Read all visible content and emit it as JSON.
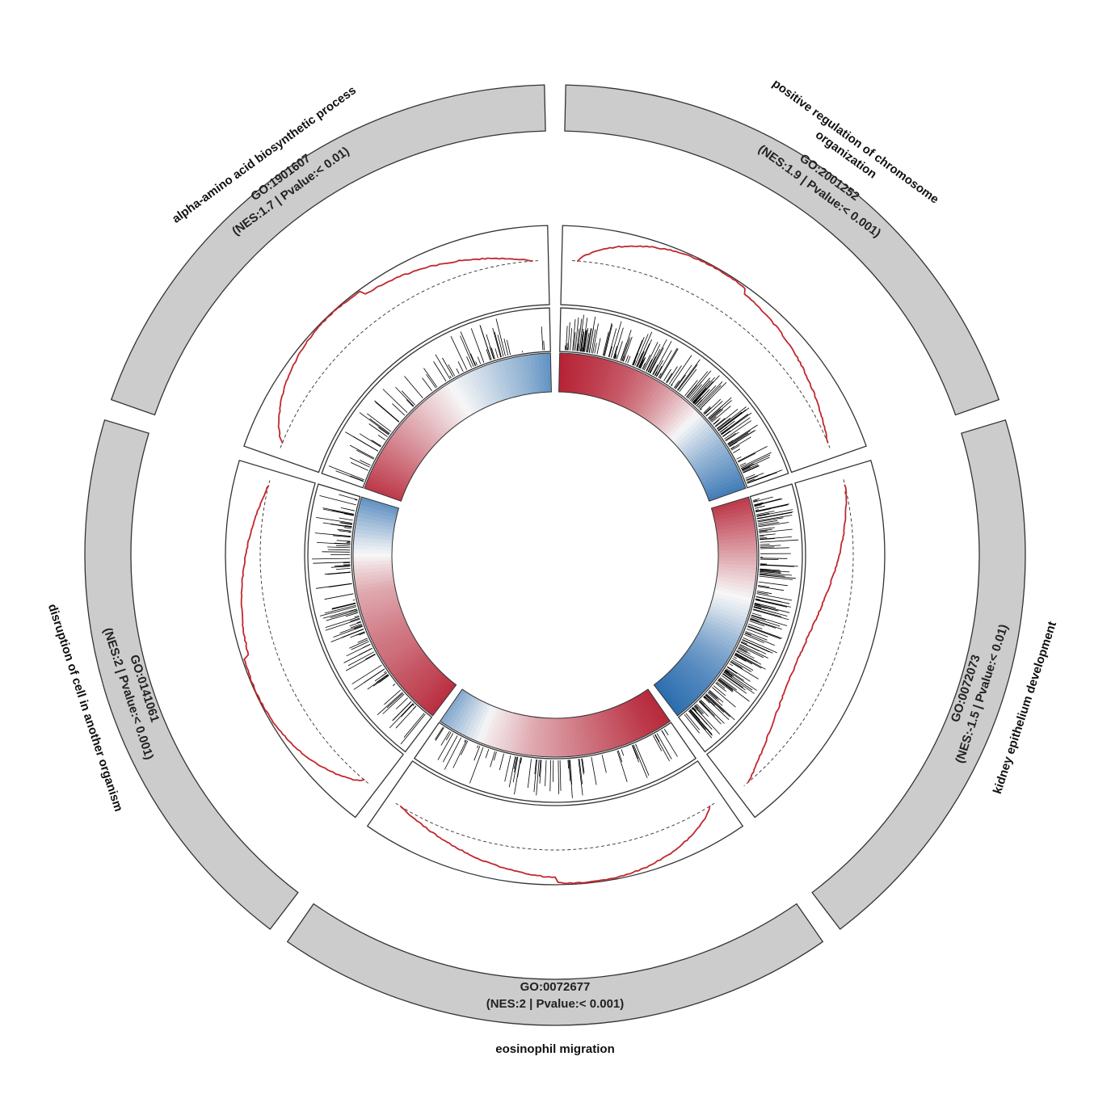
{
  "chart_data": {
    "type": "circular-gsea",
    "colors": {
      "outer_band": "#cccccc",
      "enrichment_line": "#c0282d",
      "positive": "#b2182b",
      "negative": "#2166ac",
      "neutral": "#f7f7f7",
      "hit_ticks": "#000000"
    },
    "terms": [
      {
        "go_id": "GO:2001252",
        "term": "positive regulation of chromosome organization",
        "term_lines": [
          "positive regulation of chromosome",
          "organization"
        ],
        "nes": 1.9,
        "nes_text": "(NES:1.9 | Pvalue:< 0.001)",
        "rank_profile": [
          0.95,
          0.88,
          0.8,
          0.7,
          0.55,
          0.35,
          0.1,
          -0.2,
          -0.45,
          -0.65,
          -0.85
        ],
        "hit_density": "high"
      },
      {
        "go_id": "GO:0072073",
        "term": "kidney epithelium development",
        "term_lines": [
          "kidney epithelium development"
        ],
        "nes": -1.5,
        "nes_text": "(NES:-1.5 | Pvalue:< 0.01)",
        "rank_profile": [
          0.85,
          0.65,
          0.45,
          0.25,
          0.05,
          -0.15,
          -0.4,
          -0.6,
          -0.75,
          -0.85,
          -0.95
        ],
        "hit_density": "high"
      },
      {
        "go_id": "GO:0072677",
        "term": "eosinophil migration",
        "term_lines": [
          "eosinophil migration"
        ],
        "nes": 2,
        "nes_text": "(NES:2 | Pvalue:< 0.001)",
        "rank_profile": [
          0.92,
          0.85,
          0.75,
          0.65,
          0.55,
          0.45,
          0.35,
          0.2,
          0.05,
          -0.25,
          -0.55
        ],
        "hit_density": "low"
      },
      {
        "go_id": "GO:0141061",
        "term": "disruption of cell in another organism",
        "term_lines": [
          "disruption of cell in another organism"
        ],
        "nes": 2,
        "nes_text": "(NES:2 | Pvalue:< 0.001)",
        "rank_profile": [
          0.9,
          0.8,
          0.72,
          0.62,
          0.55,
          0.45,
          0.35,
          0.15,
          -0.1,
          -0.4,
          -0.7
        ],
        "hit_density": "medium"
      },
      {
        "go_id": "GO:1901607",
        "term": "alpha-amino acid biosynthetic process",
        "term_lines": [
          "alpha-amino acid biosynthetic process"
        ],
        "nes": 1.7,
        "nes_text": "(NES:1.7 | Pvalue:< 0.01)",
        "rank_profile": [
          0.85,
          0.7,
          0.55,
          0.4,
          0.25,
          0.1,
          -0.05,
          -0.2,
          -0.35,
          -0.5,
          -0.7
        ],
        "hit_density": "low"
      }
    ]
  }
}
